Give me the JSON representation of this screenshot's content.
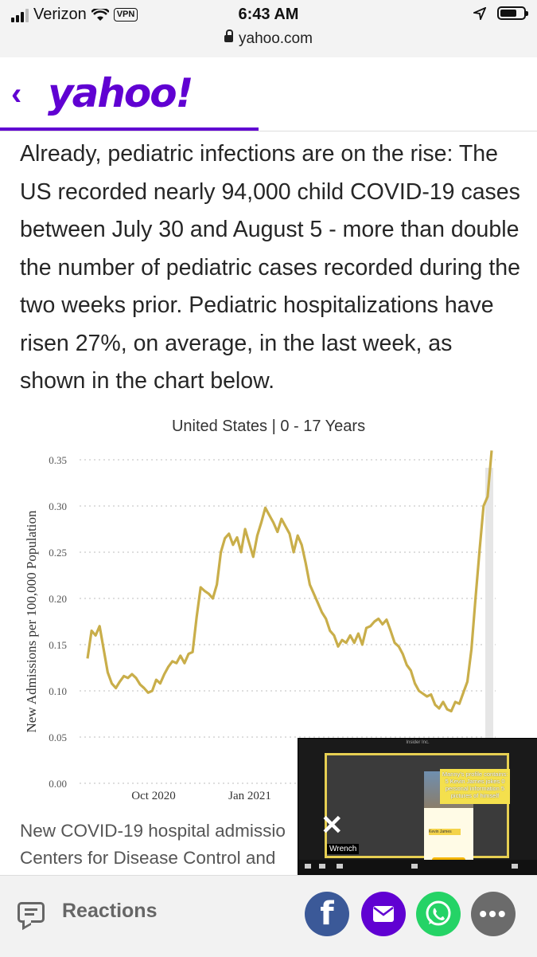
{
  "status_bar": {
    "carrier": "Verizon",
    "vpn": "VPN",
    "time": "6:43 AM",
    "url": "yahoo.com"
  },
  "header": {
    "back_icon": "chevron-left-icon",
    "logo": "yahoo!",
    "brand_color": "#6001d2"
  },
  "article": {
    "paragraph": "Already, pediatric infections are on the rise: The US recorded nearly 94,000 child COVID-19 cases between July 30 and August 5 - more than double the number of pediatric cases recorded during the two weeks prior. Pediatric hospitalizations have risen 27%, on average, in the last week, as shown in the chart below."
  },
  "chart_data": {
    "type": "line",
    "title": "United States | 0 - 17 Years",
    "ylabel": "New Admissions per 100,000 Population",
    "xlabel": "",
    "ylim": [
      0,
      0.35
    ],
    "yticks": [
      "0.35",
      "0.30",
      "0.25",
      "0.20",
      "0.15",
      "0.10",
      "0.05",
      "0.00"
    ],
    "xticks": [
      "Oct 2020",
      "Jan 2021"
    ],
    "grid": true,
    "line_color": "#c9ae4a",
    "series": [
      {
        "values": [
          [
            0.0,
            0.135
          ],
          [
            0.01,
            0.165
          ],
          [
            0.02,
            0.16
          ],
          [
            0.03,
            0.17
          ],
          [
            0.04,
            0.145
          ],
          [
            0.05,
            0.12
          ],
          [
            0.06,
            0.108
          ],
          [
            0.07,
            0.103
          ],
          [
            0.08,
            0.11
          ],
          [
            0.09,
            0.116
          ],
          [
            0.1,
            0.114
          ],
          [
            0.11,
            0.118
          ],
          [
            0.12,
            0.114
          ],
          [
            0.13,
            0.107
          ],
          [
            0.14,
            0.103
          ],
          [
            0.15,
            0.098
          ],
          [
            0.16,
            0.1
          ],
          [
            0.17,
            0.112
          ],
          [
            0.18,
            0.108
          ],
          [
            0.19,
            0.118
          ],
          [
            0.2,
            0.126
          ],
          [
            0.21,
            0.132
          ],
          [
            0.22,
            0.13
          ],
          [
            0.23,
            0.138
          ],
          [
            0.24,
            0.13
          ],
          [
            0.25,
            0.14
          ],
          [
            0.26,
            0.142
          ],
          [
            0.27,
            0.18
          ],
          [
            0.28,
            0.212
          ],
          [
            0.29,
            0.208
          ],
          [
            0.3,
            0.205
          ],
          [
            0.31,
            0.2
          ],
          [
            0.32,
            0.215
          ],
          [
            0.33,
            0.25
          ],
          [
            0.34,
            0.265
          ],
          [
            0.35,
            0.27
          ],
          [
            0.36,
            0.258
          ],
          [
            0.37,
            0.266
          ],
          [
            0.38,
            0.25
          ],
          [
            0.39,
            0.275
          ],
          [
            0.4,
            0.26
          ],
          [
            0.41,
            0.245
          ],
          [
            0.42,
            0.268
          ],
          [
            0.43,
            0.282
          ],
          [
            0.44,
            0.298
          ],
          [
            0.45,
            0.29
          ],
          [
            0.46,
            0.282
          ],
          [
            0.47,
            0.272
          ],
          [
            0.48,
            0.286
          ],
          [
            0.49,
            0.278
          ],
          [
            0.5,
            0.27
          ],
          [
            0.51,
            0.25
          ],
          [
            0.52,
            0.268
          ],
          [
            0.53,
            0.258
          ],
          [
            0.54,
            0.238
          ],
          [
            0.55,
            0.215
          ],
          [
            0.56,
            0.205
          ],
          [
            0.57,
            0.195
          ],
          [
            0.58,
            0.185
          ],
          [
            0.59,
            0.178
          ],
          [
            0.6,
            0.165
          ],
          [
            0.61,
            0.16
          ],
          [
            0.62,
            0.148
          ],
          [
            0.63,
            0.155
          ],
          [
            0.64,
            0.152
          ],
          [
            0.65,
            0.16
          ],
          [
            0.66,
            0.152
          ],
          [
            0.67,
            0.162
          ],
          [
            0.68,
            0.15
          ],
          [
            0.69,
            0.168
          ],
          [
            0.7,
            0.17
          ],
          [
            0.71,
            0.175
          ],
          [
            0.72,
            0.178
          ],
          [
            0.73,
            0.172
          ],
          [
            0.74,
            0.177
          ],
          [
            0.75,
            0.165
          ],
          [
            0.76,
            0.152
          ],
          [
            0.77,
            0.148
          ],
          [
            0.78,
            0.14
          ],
          [
            0.79,
            0.128
          ],
          [
            0.8,
            0.122
          ],
          [
            0.81,
            0.108
          ],
          [
            0.82,
            0.1
          ],
          [
            0.83,
            0.097
          ],
          [
            0.84,
            0.094
          ],
          [
            0.85,
            0.096
          ],
          [
            0.86,
            0.085
          ],
          [
            0.87,
            0.081
          ],
          [
            0.88,
            0.088
          ],
          [
            0.89,
            0.08
          ],
          [
            0.9,
            0.078
          ],
          [
            0.91,
            0.088
          ],
          [
            0.92,
            0.086
          ],
          [
            0.93,
            0.098
          ],
          [
            0.94,
            0.11
          ],
          [
            0.95,
            0.145
          ],
          [
            0.96,
            0.2
          ],
          [
            0.97,
            0.252
          ],
          [
            0.98,
            0.3
          ],
          [
            0.99,
            0.31
          ],
          [
            1.0,
            0.36
          ]
        ]
      }
    ]
  },
  "caption": {
    "line1": "New COVID-19 hospital admissio",
    "line2": "Centers for Disease Control and"
  },
  "video_overlay": {
    "window_title": "Insider Inc.",
    "note": "Manny's profile contains: 5 Kevin James jokes 0 personal information 5 pictures of himself",
    "person_name": "Kevin James",
    "close_icon": "close-icon",
    "participant": "Wrench"
  },
  "bottom_bar": {
    "reactions_label": "Reactions",
    "share_icons": [
      "facebook-icon",
      "mail-icon",
      "whatsapp-icon",
      "more-icon"
    ],
    "facebook_glyph": "f",
    "more_glyph": "•••"
  }
}
